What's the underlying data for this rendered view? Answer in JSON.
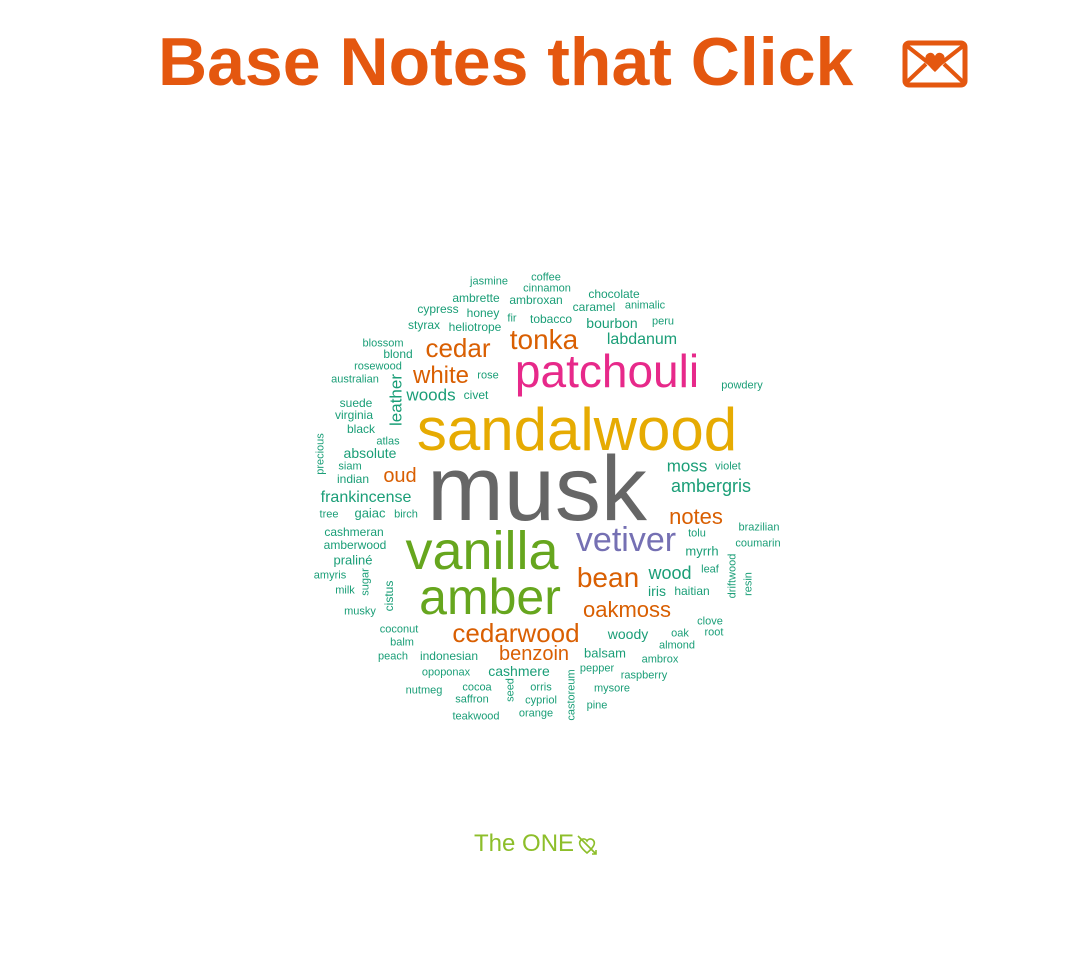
{
  "title": {
    "text": "Base Notes that Click",
    "icon": "heart-envelope-icon",
    "color": "#E4570F"
  },
  "footer": {
    "text": "The ONE",
    "icon": "heart-arrow-icon",
    "color": "#8DBE2A"
  },
  "palette": {
    "teal": "#1A9E77",
    "orange": "#D95F02",
    "purple": "#7570B3",
    "pink": "#E7298A",
    "green": "#66A61E",
    "gold": "#E6AB02",
    "brown": "#A6761D",
    "gray": "#666666"
  },
  "words": [
    {
      "text": "musk",
      "color": "gray"
    },
    {
      "text": "sandalwood",
      "color": "gold"
    },
    {
      "text": "vanilla",
      "color": "green"
    },
    {
      "text": "amber",
      "color": "green"
    },
    {
      "text": "patchouli",
      "color": "pink"
    },
    {
      "text": "vetiver",
      "color": "purple"
    },
    {
      "text": "tonka",
      "color": "orange"
    },
    {
      "text": "cedarwood",
      "color": "orange"
    },
    {
      "text": "cedar",
      "color": "orange"
    },
    {
      "text": "bean",
      "color": "orange"
    },
    {
      "text": "oakmoss",
      "color": "orange"
    },
    {
      "text": "white",
      "color": "orange"
    },
    {
      "text": "benzoin",
      "color": "orange"
    },
    {
      "text": "notes",
      "color": "orange"
    },
    {
      "text": "oud",
      "color": "orange"
    },
    {
      "text": "ambergris",
      "color": "teal"
    },
    {
      "text": "moss",
      "color": "teal"
    },
    {
      "text": "frankincense",
      "color": "teal"
    },
    {
      "text": "labdanum",
      "color": "teal"
    },
    {
      "text": "woods",
      "color": "teal"
    },
    {
      "text": "leather",
      "color": "teal"
    },
    {
      "text": "wood",
      "color": "teal"
    },
    {
      "text": "woody",
      "color": "teal"
    },
    {
      "text": "absolute",
      "color": "teal"
    },
    {
      "text": "bourbon",
      "color": "teal"
    },
    {
      "text": "cashmere",
      "color": "teal"
    },
    {
      "text": "tobacco",
      "color": "teal"
    },
    {
      "text": "caramel",
      "color": "teal"
    },
    {
      "text": "ambrette",
      "color": "teal"
    },
    {
      "text": "ambroxan",
      "color": "teal"
    },
    {
      "text": "chocolate",
      "color": "teal"
    },
    {
      "text": "heliotrope",
      "color": "teal"
    },
    {
      "text": "honey",
      "color": "teal"
    },
    {
      "text": "styrax",
      "color": "teal"
    },
    {
      "text": "cypress",
      "color": "teal"
    },
    {
      "text": "animalic",
      "color": "teal"
    },
    {
      "text": "cinnamon",
      "color": "teal"
    },
    {
      "text": "coffee",
      "color": "teal"
    },
    {
      "text": "jasmine",
      "color": "teal"
    },
    {
      "text": "fir",
      "color": "teal"
    },
    {
      "text": "peru",
      "color": "teal"
    },
    {
      "text": "blossom",
      "color": "teal"
    },
    {
      "text": "blond",
      "color": "teal"
    },
    {
      "text": "rosewood",
      "color": "teal"
    },
    {
      "text": "rose",
      "color": "teal"
    },
    {
      "text": "australian",
      "color": "teal"
    },
    {
      "text": "civet",
      "color": "teal"
    },
    {
      "text": "powdery",
      "color": "teal"
    },
    {
      "text": "suede",
      "color": "teal"
    },
    {
      "text": "virginia",
      "color": "teal"
    },
    {
      "text": "black",
      "color": "teal"
    },
    {
      "text": "atlas",
      "color": "teal"
    },
    {
      "text": "precious",
      "color": "teal"
    },
    {
      "text": "siam",
      "color": "teal"
    },
    {
      "text": "indian",
      "color": "teal"
    },
    {
      "text": "violet",
      "color": "teal"
    },
    {
      "text": "gaiac",
      "color": "teal"
    },
    {
      "text": "tree",
      "color": "teal"
    },
    {
      "text": "birch",
      "color": "teal"
    },
    {
      "text": "cashmeran",
      "color": "teal"
    },
    {
      "text": "amberwood",
      "color": "teal"
    },
    {
      "text": "praliné",
      "color": "teal"
    },
    {
      "text": "amyris",
      "color": "teal"
    },
    {
      "text": "sugar",
      "color": "teal"
    },
    {
      "text": "milk",
      "color": "teal"
    },
    {
      "text": "cistus",
      "color": "teal"
    },
    {
      "text": "musky",
      "color": "teal"
    },
    {
      "text": "tolu",
      "color": "teal"
    },
    {
      "text": "brazilian",
      "color": "teal"
    },
    {
      "text": "coumarin",
      "color": "teal"
    },
    {
      "text": "myrrh",
      "color": "teal"
    },
    {
      "text": "leaf",
      "color": "teal"
    },
    {
      "text": "driftwood",
      "color": "teal"
    },
    {
      "text": "resin",
      "color": "teal"
    },
    {
      "text": "iris",
      "color": "teal"
    },
    {
      "text": "haitian",
      "color": "teal"
    },
    {
      "text": "clove",
      "color": "teal"
    },
    {
      "text": "oak",
      "color": "teal"
    },
    {
      "text": "root",
      "color": "teal"
    },
    {
      "text": "almond",
      "color": "teal"
    },
    {
      "text": "coconut",
      "color": "teal"
    },
    {
      "text": "balm",
      "color": "teal"
    },
    {
      "text": "peach",
      "color": "teal"
    },
    {
      "text": "indonesian",
      "color": "teal"
    },
    {
      "text": "balsam",
      "color": "teal"
    },
    {
      "text": "ambrox",
      "color": "teal"
    },
    {
      "text": "opoponax",
      "color": "teal"
    },
    {
      "text": "pepper",
      "color": "teal"
    },
    {
      "text": "raspberry",
      "color": "teal"
    },
    {
      "text": "cocoa",
      "color": "teal"
    },
    {
      "text": "seed",
      "color": "teal"
    },
    {
      "text": "orris",
      "color": "teal"
    },
    {
      "text": "castoreum",
      "color": "teal"
    },
    {
      "text": "mysore",
      "color": "teal"
    },
    {
      "text": "nutmeg",
      "color": "teal"
    },
    {
      "text": "saffron",
      "color": "teal"
    },
    {
      "text": "cypriol",
      "color": "teal"
    },
    {
      "text": "pine",
      "color": "teal"
    },
    {
      "text": "teakwood",
      "color": "teal"
    },
    {
      "text": "orange",
      "color": "teal"
    }
  ]
}
